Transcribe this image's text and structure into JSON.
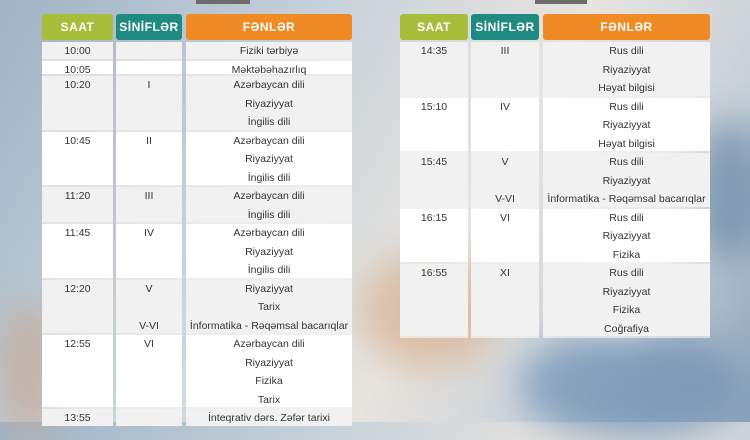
{
  "headers": {
    "saat": "SAAT",
    "sinifler": "SİNİFLƏR",
    "fenler": "FƏNLƏR"
  },
  "left_table": [
    {
      "time": "10:00",
      "class": "",
      "subjects": [
        "Fiziki tərbiyə"
      ]
    },
    {
      "time": "10:05",
      "class": "",
      "subjects": [
        "Məktəbəhazırlıq"
      ]
    },
    {
      "time": "10:20",
      "class": "I",
      "subjects": [
        "Azərbaycan dili",
        "Riyaziyyat",
        "İngilis dili"
      ]
    },
    {
      "time": "10:45",
      "class": "II",
      "subjects": [
        "Azərbaycan dili",
        "Riyaziyyat",
        "İngilis dili"
      ]
    },
    {
      "time": "11:20",
      "class": "III",
      "subjects": [
        "Azərbaycan dili",
        "İngilis dili"
      ]
    },
    {
      "time": "11:45",
      "class": "IV",
      "subjects": [
        "Azərbaycan dili",
        "Riyaziyyat",
        "İngilis dili"
      ]
    },
    {
      "time": "12:20",
      "class": "V",
      "subjects": [
        "Riyaziyyat",
        "Tarix"
      ],
      "extra_class": "V-VI",
      "extra_subject": "İnformatika - Rəqəmsal bacarıqlar"
    },
    {
      "time": "12:55",
      "class": "VI",
      "subjects": [
        "Azərbaycan dili",
        "Riyaziyyat",
        "Fizika",
        "Tarix"
      ]
    },
    {
      "time": "13:55",
      "class": "",
      "subjects": [
        "İnteqrativ dərs. Zəfər tarixi"
      ]
    }
  ],
  "right_table": [
    {
      "time": "14:35",
      "class": "III",
      "subjects": [
        "Rus dili",
        "Riyaziyyat",
        "Həyat bilgisi"
      ]
    },
    {
      "time": "15:10",
      "class": "IV",
      "subjects": [
        "Rus dili",
        "Riyaziyyat",
        "Həyat bilgisi"
      ]
    },
    {
      "time": "15:45",
      "class": "V",
      "subjects": [
        "Rus dili",
        "Riyaziyyat"
      ],
      "extra_class": "V-VI",
      "extra_subject": "İnformatika - Rəqəmsal bacarıqlar"
    },
    {
      "time": "16:15",
      "class": "VI",
      "subjects": [
        "Rus dili",
        "Riyaziyyat",
        "Fizika"
      ]
    },
    {
      "time": "16:55",
      "class": "XI",
      "subjects": [
        "Rus dili",
        "Riyaziyyat",
        "Fizika",
        "Coğrafiya"
      ]
    }
  ]
}
